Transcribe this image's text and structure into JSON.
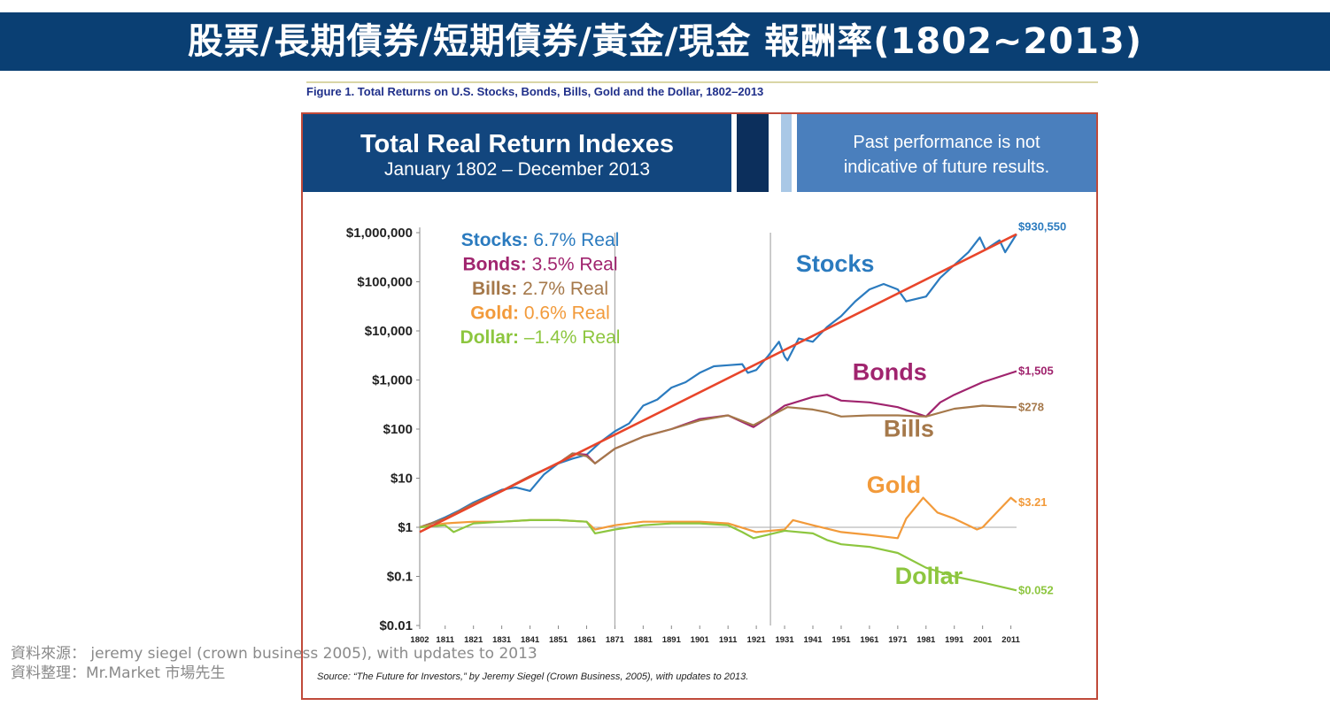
{
  "page_title": "股票/長期債券/短期債券/黃金/現金 報酬率(1802~2013)",
  "figure_caption": "Figure 1. Total Returns on U.S. Stocks, Bonds, Bills, Gold and the Dollar, 1802–2013",
  "header": {
    "title": "Total Real Return Indexes",
    "subtitle": "January 1802 – December 2013",
    "disclaimer": "Past performance is not\nindicative of future results."
  },
  "source_note": "Source: “The Future for Investors,” by Jeremy Siegel (Crown Business, 2005), with updates to 2013.",
  "credits": {
    "line1": "資料來源：  jeremy siegel (crown business 2005), with updates to 2013",
    "line2": "資料整理：Mr.Market 市場先生"
  },
  "chart_data": {
    "type": "line",
    "title": "Total Real Return Indexes",
    "subtitle": "January 1802 – December 2013",
    "y_scale": "log",
    "ylim": [
      0.01,
      1000000
    ],
    "xlim": [
      1802,
      2013
    ],
    "y_ticks": [
      {
        "value": 1000000,
        "label": "$1,000,000"
      },
      {
        "value": 100000,
        "label": "$100,000"
      },
      {
        "value": 10000,
        "label": "$10,000"
      },
      {
        "value": 1000,
        "label": "$1,000"
      },
      {
        "value": 100,
        "label": "$100"
      },
      {
        "value": 10,
        "label": "$10"
      },
      {
        "value": 1,
        "label": "$1"
      },
      {
        "value": 0.1,
        "label": "$0.1"
      },
      {
        "value": 0.01,
        "label": "$0.01"
      }
    ],
    "x_ticks": [
      "1802",
      "1811",
      "1821",
      "1831",
      "1841",
      "1851",
      "1861",
      "1871",
      "1881",
      "1891",
      "1901",
      "1911",
      "1921",
      "1931",
      "1941",
      "1951",
      "1961",
      "1971",
      "1981",
      "1991",
      "2001",
      "2011"
    ],
    "vertical_lines": [
      1871,
      1926
    ],
    "legend": [
      {
        "name": "Stocks:",
        "rate": " 6.7% Real",
        "color": "#2b7bbf"
      },
      {
        "name": "Bonds:",
        "rate": " 3.5% Real",
        "color": "#a0246e"
      },
      {
        "name": "Bills:",
        "rate": " 2.7% Real",
        "color": "#a5784a"
      },
      {
        "name": "Gold:",
        "rate": " 0.6% Real",
        "color": "#f29a3a"
      },
      {
        "name": "Dollar:",
        "rate": " –1.4% Real",
        "color": "#8dc63f"
      }
    ],
    "trend": {
      "color": "#e8452a",
      "points": [
        [
          1802,
          0.8
        ],
        [
          2013,
          930550
        ]
      ]
    },
    "series": [
      {
        "name": "Stocks",
        "color": "#2b7bbf",
        "end_label": "$930,550",
        "label_at": [
          1935,
          160000
        ],
        "points": [
          [
            1802,
            1
          ],
          [
            1806,
            1.2
          ],
          [
            1811,
            1.6
          ],
          [
            1816,
            2.2
          ],
          [
            1821,
            3.2
          ],
          [
            1826,
            4.3
          ],
          [
            1831,
            5.8
          ],
          [
            1836,
            6.5
          ],
          [
            1841,
            5.5
          ],
          [
            1846,
            12
          ],
          [
            1851,
            20
          ],
          [
            1856,
            25
          ],
          [
            1861,
            30
          ],
          [
            1866,
            55
          ],
          [
            1871,
            90
          ],
          [
            1876,
            130
          ],
          [
            1881,
            300
          ],
          [
            1886,
            400
          ],
          [
            1891,
            700
          ],
          [
            1896,
            900
          ],
          [
            1901,
            1400
          ],
          [
            1906,
            1900
          ],
          [
            1911,
            2000
          ],
          [
            1916,
            2100
          ],
          [
            1918,
            1400
          ],
          [
            1921,
            1600
          ],
          [
            1925,
            3000
          ],
          [
            1929,
            6000
          ],
          [
            1931,
            3000
          ],
          [
            1932,
            2500
          ],
          [
            1936,
            7000
          ],
          [
            1941,
            6000
          ],
          [
            1946,
            12000
          ],
          [
            1951,
            20000
          ],
          [
            1956,
            40000
          ],
          [
            1961,
            70000
          ],
          [
            1966,
            90000
          ],
          [
            1971,
            70000
          ],
          [
            1974,
            40000
          ],
          [
            1981,
            50000
          ],
          [
            1986,
            120000
          ],
          [
            1991,
            220000
          ],
          [
            1996,
            400000
          ],
          [
            2000,
            800000
          ],
          [
            2002,
            450000
          ],
          [
            2007,
            700000
          ],
          [
            2009,
            400000
          ],
          [
            2013,
            930550
          ]
        ]
      },
      {
        "name": "Bonds",
        "color": "#a0246e",
        "end_label": "$1,505",
        "label_at": [
          1955,
          1000
        ],
        "points": [
          [
            1802,
            1
          ],
          [
            1811,
            1.5
          ],
          [
            1821,
            3
          ],
          [
            1831,
            5.5
          ],
          [
            1841,
            11
          ],
          [
            1851,
            20
          ],
          [
            1856,
            32
          ],
          [
            1861,
            30
          ],
          [
            1864,
            20
          ],
          [
            1871,
            40
          ],
          [
            1881,
            70
          ],
          [
            1891,
            100
          ],
          [
            1901,
            160
          ],
          [
            1911,
            190
          ],
          [
            1920,
            110
          ],
          [
            1925,
            170
          ],
          [
            1931,
            300
          ],
          [
            1941,
            450
          ],
          [
            1946,
            500
          ],
          [
            1951,
            380
          ],
          [
            1961,
            350
          ],
          [
            1971,
            280
          ],
          [
            1981,
            180
          ],
          [
            1986,
            350
          ],
          [
            1991,
            500
          ],
          [
            2001,
            900
          ],
          [
            2013,
            1505
          ]
        ]
      },
      {
        "name": "Bills",
        "color": "#a5784a",
        "end_label": "$278",
        "label_at": [
          1966,
          70
        ],
        "points": [
          [
            1802,
            1
          ],
          [
            1811,
            1.5
          ],
          [
            1821,
            3
          ],
          [
            1831,
            5.5
          ],
          [
            1841,
            11
          ],
          [
            1851,
            20
          ],
          [
            1856,
            32
          ],
          [
            1861,
            28
          ],
          [
            1864,
            20
          ],
          [
            1871,
            40
          ],
          [
            1881,
            70
          ],
          [
            1891,
            100
          ],
          [
            1901,
            150
          ],
          [
            1911,
            190
          ],
          [
            1920,
            120
          ],
          [
            1925,
            170
          ],
          [
            1932,
            280
          ],
          [
            1941,
            250
          ],
          [
            1946,
            220
          ],
          [
            1951,
            180
          ],
          [
            1961,
            190
          ],
          [
            1971,
            190
          ],
          [
            1981,
            180
          ],
          [
            1991,
            260
          ],
          [
            2001,
            300
          ],
          [
            2013,
            278
          ]
        ]
      },
      {
        "name": "Gold",
        "color": "#f29a3a",
        "end_label": "$3.21",
        "label_at": [
          1960,
          5
        ],
        "points": [
          [
            1802,
            1
          ],
          [
            1811,
            1.2
          ],
          [
            1821,
            1.3
          ],
          [
            1831,
            1.3
          ],
          [
            1841,
            1.4
          ],
          [
            1851,
            1.4
          ],
          [
            1861,
            1.3
          ],
          [
            1864,
            0.9
          ],
          [
            1871,
            1.1
          ],
          [
            1881,
            1.3
          ],
          [
            1891,
            1.3
          ],
          [
            1901,
            1.3
          ],
          [
            1911,
            1.2
          ],
          [
            1921,
            0.8
          ],
          [
            1931,
            0.9
          ],
          [
            1934,
            1.4
          ],
          [
            1941,
            1.1
          ],
          [
            1951,
            0.8
          ],
          [
            1961,
            0.7
          ],
          [
            1971,
            0.6
          ],
          [
            1974,
            1.5
          ],
          [
            1980,
            4
          ],
          [
            1985,
            2
          ],
          [
            1991,
            1.5
          ],
          [
            1999,
            0.9
          ],
          [
            2001,
            1
          ],
          [
            2006,
            2
          ],
          [
            2011,
            4
          ],
          [
            2013,
            3.21
          ]
        ]
      },
      {
        "name": "Dollar",
        "color": "#8dc63f",
        "end_label": "$0.052",
        "label_at": [
          1970,
          0.07
        ],
        "points": [
          [
            1802,
            1
          ],
          [
            1811,
            1.1
          ],
          [
            1814,
            0.8
          ],
          [
            1821,
            1.2
          ],
          [
            1831,
            1.3
          ],
          [
            1841,
            1.4
          ],
          [
            1851,
            1.4
          ],
          [
            1861,
            1.3
          ],
          [
            1864,
            0.75
          ],
          [
            1871,
            0.9
          ],
          [
            1881,
            1.1
          ],
          [
            1891,
            1.2
          ],
          [
            1901,
            1.2
          ],
          [
            1911,
            1.1
          ],
          [
            1916,
            0.8
          ],
          [
            1920,
            0.6
          ],
          [
            1931,
            0.85
          ],
          [
            1941,
            0.75
          ],
          [
            1946,
            0.55
          ],
          [
            1951,
            0.45
          ],
          [
            1961,
            0.4
          ],
          [
            1971,
            0.3
          ],
          [
            1981,
            0.15
          ],
          [
            1991,
            0.1
          ],
          [
            2001,
            0.075
          ],
          [
            2013,
            0.052
          ]
        ]
      }
    ]
  }
}
